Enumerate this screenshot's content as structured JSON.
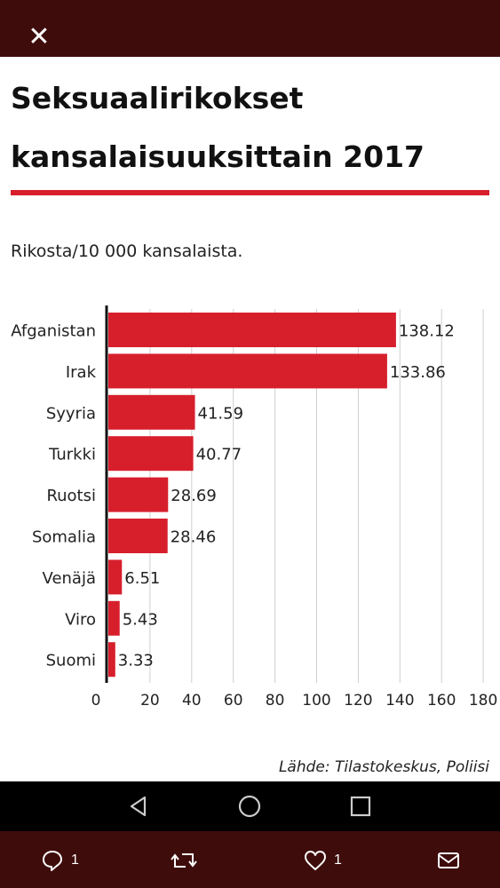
{
  "header": {
    "close_icon": "close-icon",
    "close_glyph": "✕"
  },
  "chart_data": {
    "type": "bar",
    "orientation": "horizontal",
    "title_line1": "Seksuaalirikokset",
    "title_line2": "kansalaisuuksittain 2017",
    "subtitle": "Rikosta/10 000 kansalaista.",
    "categories": [
      "Afganistan",
      "Irak",
      "Syyria",
      "Turkki",
      "Ruotsi",
      "Somalia",
      "Venäjä",
      "Viro",
      "Suomi"
    ],
    "values": [
      138.12,
      133.86,
      41.59,
      40.77,
      28.69,
      28.46,
      6.51,
      5.43,
      3.33
    ],
    "value_labels": [
      "138.12",
      "133.86",
      "41.59",
      "40.77",
      "28.69",
      "28.46",
      "6.51",
      "5.43",
      "3.33"
    ],
    "xticks": [
      0,
      20,
      40,
      60,
      80,
      100,
      120,
      140,
      160,
      180
    ],
    "xlim": [
      0,
      180
    ],
    "grid": true,
    "bar_color": "#d71f2c",
    "source": "Lähde: Tilastokeskus, Poliisi"
  },
  "navbar": {
    "icons": [
      "back-triangle-icon",
      "home-circle-icon",
      "recents-square-icon"
    ]
  },
  "actions": {
    "reply_count": "1",
    "like_count": "1",
    "icons": [
      "reply-bubble-icon",
      "retweet-icon",
      "heart-icon",
      "mail-icon"
    ]
  },
  "colors": {
    "bar_background": "#3f0c0c",
    "accent": "#d71f2c"
  }
}
